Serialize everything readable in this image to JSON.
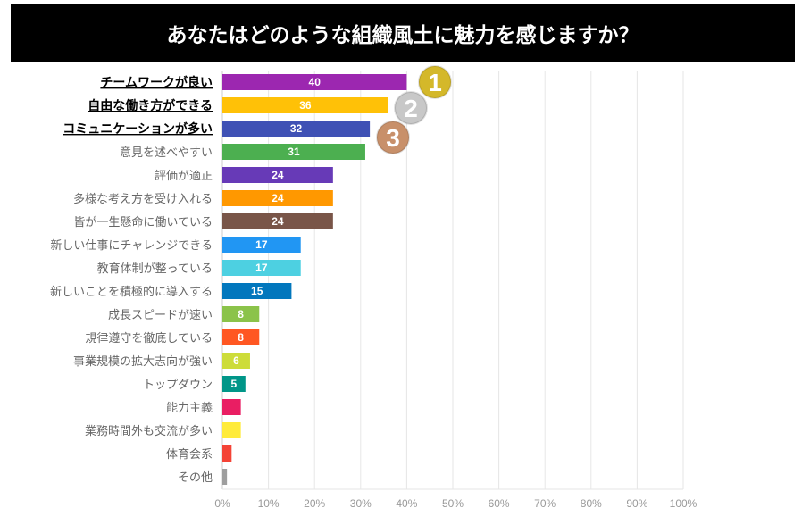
{
  "chart_data": {
    "type": "bar",
    "orientation": "horizontal",
    "title": "あなたはどのような組織風土に魅力を感じますか？",
    "xlabel": "",
    "ylabel": "",
    "xlim": [
      0,
      100
    ],
    "x_ticks": [
      "0%",
      "10%",
      "20%",
      "30%",
      "40%",
      "50%",
      "60%",
      "70%",
      "80%",
      "90%",
      "100%"
    ],
    "grid": true,
    "categories": [
      "チームワークが良い",
      "自由な働き方ができる",
      "コミュニケーションが多い",
      "意見を述べやすい",
      "評価が適正",
      "多様な考え方を受け入れる",
      "皆が一生懸命に働いている",
      "新しい仕事にチャレンジできる",
      "教育体制が整っている",
      "新しいことを積極的に導入する",
      "成長スピードが速い",
      "規律遵守を徹底している",
      "事業規模の拡大志向が強い",
      "トップダウン",
      "能力主義",
      "業務時間外も交流が多い",
      "体育会系",
      "その他"
    ],
    "values": [
      40,
      36,
      32,
      31,
      24,
      24,
      24,
      17,
      17,
      15,
      8,
      8,
      6,
      5,
      4,
      4,
      2,
      1
    ],
    "data_labels": [
      "40",
      "36",
      "32",
      "31",
      "24",
      "24",
      "24",
      "17",
      "17",
      "15",
      "8",
      "8",
      "6",
      "5",
      "",
      "",
      "",
      ""
    ],
    "highlighted": [
      true,
      true,
      true,
      false,
      false,
      false,
      false,
      false,
      false,
      false,
      false,
      false,
      false,
      false,
      false,
      false,
      false,
      false
    ],
    "colors": [
      "#9c27b0",
      "#ffc107",
      "#3f51b5",
      "#4caf50",
      "#673ab7",
      "#ff9800",
      "#795548",
      "#2196f3",
      "#4dd0e1",
      "#0277bd",
      "#8bc34a",
      "#ff5722",
      "#cddc39",
      "#009688",
      "#e91e63",
      "#ffeb3b",
      "#f44336",
      "#9e9e9e"
    ],
    "medals": [
      {
        "rank": "1",
        "color": "#d4b82a"
      },
      {
        "rank": "2",
        "color": "#c8c8c8"
      },
      {
        "rank": "3",
        "color": "#c8906a"
      }
    ]
  }
}
